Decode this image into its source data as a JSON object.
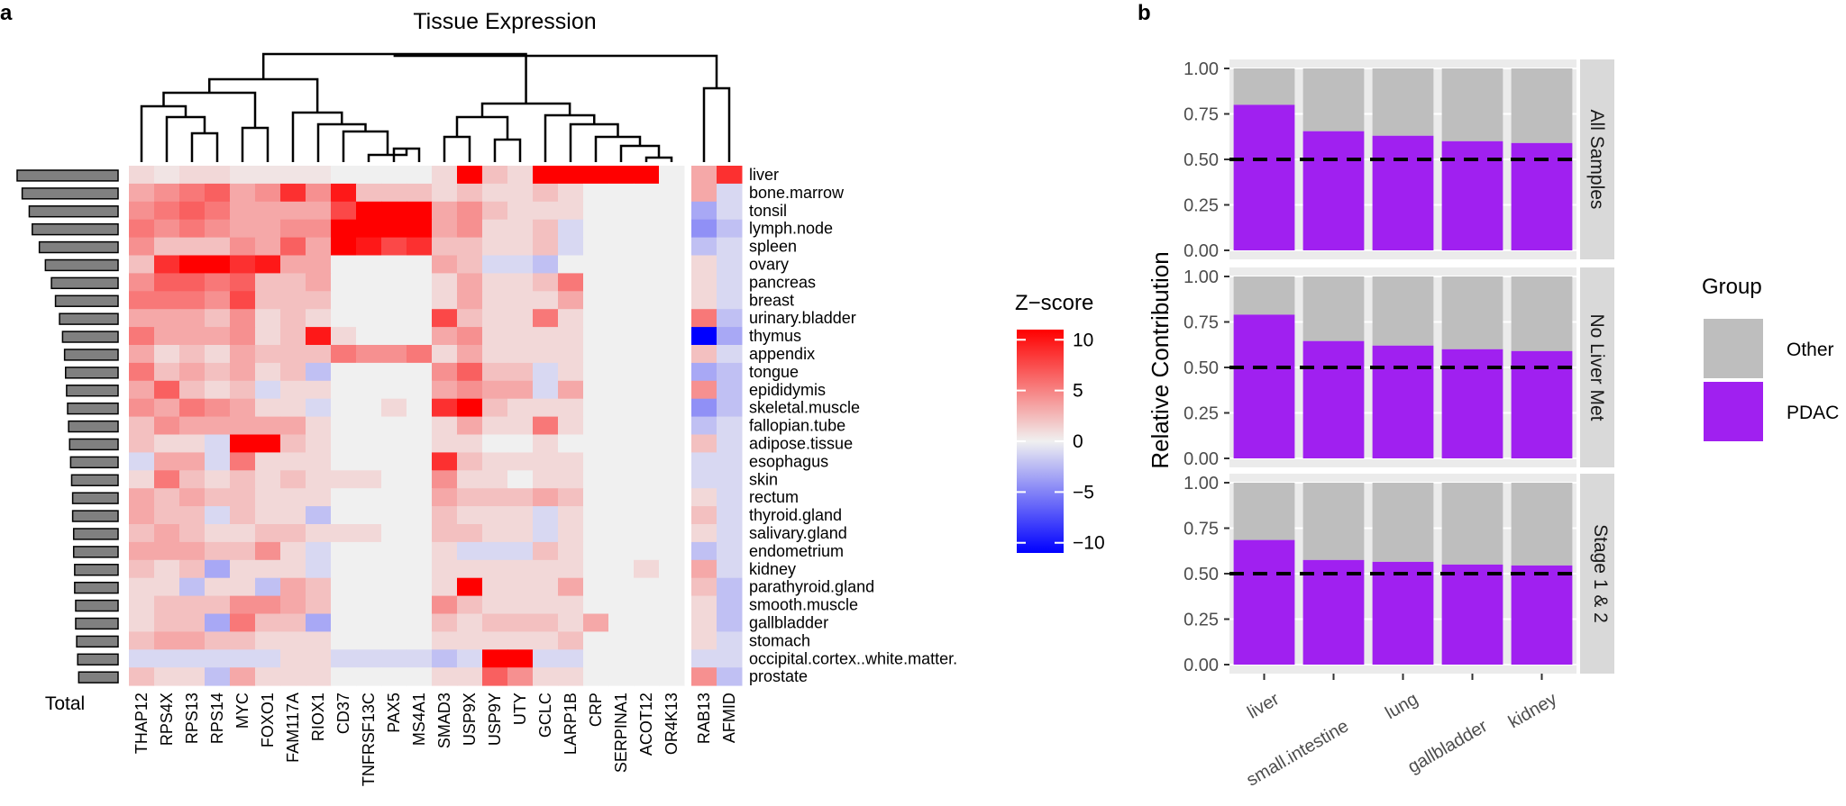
{
  "panels": {
    "a": "a",
    "b": "b"
  },
  "chart_data": [
    {
      "type": "heatmap",
      "title": "Tissue Expression",
      "rows": [
        "liver",
        "bone.marrow",
        "tonsil",
        "lymph.node",
        "spleen",
        "ovary",
        "pancreas",
        "breast",
        "urinary.bladder",
        "thymus",
        "appendix",
        "tongue",
        "epididymis",
        "skeletal.muscle",
        "fallopian.tube",
        "adipose.tissue",
        "esophagus",
        "skin",
        "rectum",
        "thyroid.gland",
        "salivary.gland",
        "endometrium",
        "kidney",
        "parathyroid.gland",
        "smooth.muscle",
        "gallbladder",
        "stomach",
        "occipital.cortex..white.matter.",
        "prostate"
      ],
      "columns": [
        "THAP12",
        "RPS4X",
        "RPS13",
        "RPS14",
        "MYC",
        "FOXO1",
        "FAM117A",
        "RIOX1",
        "CD37",
        "TNFRSF13C",
        "PAX5",
        "MS4A1",
        "SMAD3",
        "USP9X",
        "USP9Y",
        "UTY",
        "GCLC",
        "LARP1B",
        "CRP",
        "SERPINA1",
        "ACOT12",
        "OR4K13",
        "RAB13",
        "AFMID"
      ],
      "total_label": "Total",
      "row_totals": [
        100,
        95,
        88,
        85,
        78,
        72,
        66,
        62,
        58,
        55,
        53,
        52,
        51,
        50,
        49,
        48,
        47,
        46,
        45,
        45,
        44,
        44,
        43,
        43,
        42,
        42,
        41,
        40,
        39
      ],
      "values": [
        [
          1,
          0.5,
          1,
          1,
          0.5,
          0.5,
          0.5,
          0.5,
          0,
          0,
          0,
          0,
          1,
          12,
          2,
          1,
          10,
          10,
          10,
          10,
          10,
          0,
          3,
          8
        ],
        [
          3,
          4,
          5,
          6,
          3,
          4,
          8,
          4,
          9,
          2,
          2,
          2,
          1,
          2,
          1,
          1,
          2,
          1,
          0,
          0,
          0,
          0,
          3,
          -1
        ],
        [
          4,
          5,
          6,
          5,
          3,
          3,
          3,
          3,
          7,
          10,
          10,
          10,
          3,
          4,
          2,
          1,
          1,
          1,
          0,
          0,
          0,
          0,
          -3,
          -1
        ],
        [
          5,
          4,
          5,
          4,
          3,
          3,
          4,
          4,
          10,
          10,
          10,
          10,
          3,
          4,
          1,
          1,
          2,
          -1,
          0,
          0,
          0,
          0,
          -4,
          -2
        ],
        [
          4,
          2,
          2,
          2,
          4,
          3,
          6,
          3,
          10,
          9,
          7,
          8,
          2,
          2,
          1,
          1,
          2,
          -1,
          0,
          0,
          0,
          0,
          -2,
          -1
        ],
        [
          2,
          8,
          10,
          10,
          8,
          9,
          3,
          3,
          0,
          0,
          0,
          0,
          3,
          2,
          -1,
          -1,
          -2,
          0,
          0,
          0,
          0,
          0,
          1,
          -1
        ],
        [
          4,
          6,
          6,
          5,
          6,
          2,
          2,
          3,
          0,
          0,
          0,
          0,
          1,
          3,
          1,
          1,
          2,
          5,
          0,
          0,
          0,
          0,
          1,
          -1
        ],
        [
          5,
          5,
          5,
          4,
          7,
          2,
          2,
          2,
          0,
          0,
          0,
          0,
          1,
          3,
          1,
          1,
          1,
          3,
          0,
          0,
          0,
          0,
          1,
          -1
        ],
        [
          3,
          3,
          3,
          2,
          4,
          1,
          2,
          1,
          0,
          0,
          0,
          0,
          7,
          2,
          1,
          1,
          5,
          1,
          0,
          0,
          0,
          0,
          5,
          -2
        ],
        [
          5,
          3,
          3,
          3,
          4,
          1,
          2,
          9,
          1,
          0,
          0,
          0,
          3,
          4,
          1,
          1,
          1,
          1,
          0,
          0,
          0,
          0,
          -10,
          -3
        ],
        [
          3,
          1,
          2,
          1,
          3,
          2,
          2,
          2,
          5,
          4,
          4,
          5,
          1,
          3,
          1,
          1,
          1,
          1,
          0,
          0,
          0,
          0,
          2,
          -1
        ],
        [
          5,
          2,
          3,
          2,
          3,
          1,
          2,
          -2,
          0,
          0,
          0,
          0,
          4,
          6,
          2,
          2,
          -1,
          1,
          0,
          0,
          0,
          0,
          -3,
          -2
        ],
        [
          3,
          6,
          2,
          1,
          2,
          -1,
          1,
          1,
          0,
          0,
          0,
          0,
          3,
          4,
          3,
          3,
          -1,
          3,
          0,
          0,
          0,
          0,
          4,
          -2
        ],
        [
          4,
          3,
          5,
          4,
          3,
          1,
          1,
          -1,
          0,
          0,
          1,
          0,
          8,
          10,
          2,
          1,
          1,
          1,
          0,
          0,
          0,
          0,
          -4,
          -2
        ],
        [
          2,
          4,
          3,
          3,
          3,
          3,
          3,
          1,
          0,
          0,
          0,
          0,
          1,
          3,
          1,
          1,
          5,
          1,
          0,
          0,
          0,
          0,
          -2,
          -1
        ],
        [
          2,
          1,
          1,
          -1,
          10,
          10,
          2,
          1,
          0,
          0,
          0,
          0,
          1,
          1,
          0,
          0,
          1,
          0,
          0,
          0,
          0,
          0,
          2,
          -1
        ],
        [
          -1,
          3,
          3,
          -1,
          5,
          1,
          1,
          1,
          0,
          0,
          0,
          0,
          8,
          2,
          1,
          1,
          1,
          1,
          0,
          0,
          0,
          0,
          -1,
          -1
        ],
        [
          1,
          5,
          2,
          1,
          2,
          1,
          2,
          1,
          1,
          1,
          0,
          0,
          4,
          1,
          1,
          0,
          1,
          1,
          0,
          0,
          0,
          0,
          -1,
          -1
        ],
        [
          3,
          2,
          3,
          2,
          2,
          1,
          1,
          1,
          0,
          0,
          0,
          0,
          3,
          2,
          2,
          2,
          3,
          2,
          0,
          0,
          0,
          0,
          1,
          -1
        ],
        [
          3,
          2,
          2,
          -1,
          2,
          1,
          1,
          -2,
          0,
          0,
          0,
          0,
          2,
          1,
          1,
          1,
          -1,
          1,
          0,
          0,
          0,
          0,
          2,
          -1
        ],
        [
          2,
          3,
          2,
          1,
          1,
          2,
          2,
          1,
          1,
          1,
          0,
          0,
          2,
          2,
          1,
          1,
          -1,
          1,
          0,
          0,
          0,
          0,
          1,
          -1
        ],
        [
          3,
          3,
          3,
          2,
          2,
          4,
          1,
          -1,
          0,
          0,
          0,
          0,
          1,
          -1,
          -1,
          -1,
          2,
          1,
          0,
          0,
          0,
          0,
          -2,
          -1
        ],
        [
          2,
          1,
          2,
          -3,
          1,
          1,
          1,
          -1,
          0,
          0,
          0,
          0,
          1,
          1,
          1,
          1,
          1,
          1,
          0,
          0,
          1,
          0,
          3,
          -1
        ],
        [
          1,
          1,
          -2,
          1,
          1,
          -2,
          3,
          2,
          0,
          0,
          0,
          0,
          1,
          10,
          1,
          1,
          1,
          3,
          0,
          0,
          0,
          0,
          2,
          -2
        ],
        [
          1,
          2,
          2,
          2,
          4,
          4,
          3,
          2,
          0,
          0,
          0,
          0,
          4,
          2,
          1,
          1,
          1,
          1,
          0,
          0,
          0,
          0,
          1,
          -2
        ],
        [
          1,
          2,
          2,
          -3,
          5,
          2,
          2,
          -3,
          0,
          0,
          0,
          0,
          2,
          1,
          2,
          2,
          2,
          1,
          3,
          0,
          0,
          0,
          1,
          -2
        ],
        [
          2,
          3,
          3,
          2,
          2,
          1,
          1,
          1,
          0,
          0,
          0,
          0,
          1,
          1,
          1,
          1,
          1,
          2,
          0,
          0,
          0,
          0,
          1,
          -1
        ],
        [
          -1,
          -1,
          -1,
          -1,
          -1,
          -1,
          1,
          1,
          -1,
          -1,
          -1,
          -1,
          -2,
          -1,
          10,
          10,
          -1,
          -1,
          0,
          0,
          0,
          0,
          -1,
          -1
        ],
        [
          2,
          1,
          1,
          -2,
          3,
          1,
          1,
          1,
          0,
          0,
          0,
          0,
          1,
          1,
          6,
          4,
          1,
          1,
          0,
          0,
          0,
          0,
          4,
          -2
        ]
      ],
      "legend": {
        "title": "Z−score",
        "ticks": [
          "10",
          "5",
          "0",
          "−5",
          "−10"
        ],
        "tick_values": [
          10,
          5,
          0,
          -5,
          -10
        ],
        "range": [
          -11,
          11
        ],
        "colors": [
          "#0000ff",
          "#f0f0f0",
          "#ff0000"
        ]
      }
    },
    {
      "type": "bar",
      "stacked": true,
      "ylabel": "Relative Contribution",
      "categories": [
        "liver",
        "small.intestine",
        "lung",
        "gallbladder",
        "kidney"
      ],
      "yticks": [
        "0.00",
        "0.25",
        "0.50",
        "0.75",
        "1.00"
      ],
      "ytick_values": [
        0,
        0.25,
        0.5,
        0.75,
        1
      ],
      "ylim": [
        0,
        1
      ],
      "reference_line": 0.5,
      "facets": [
        {
          "label": "All Samples",
          "pdac": [
            0.8,
            0.655,
            0.63,
            0.6,
            0.59
          ]
        },
        {
          "label": "No Liver Met",
          "pdac": [
            0.79,
            0.645,
            0.62,
            0.6,
            0.59
          ]
        },
        {
          "label": "Stage 1 & 2",
          "pdac": [
            0.685,
            0.575,
            0.565,
            0.55,
            0.545
          ]
        }
      ],
      "legend": {
        "title": "Group",
        "entries": [
          {
            "name": "Other",
            "color": "#bebebe"
          },
          {
            "name": "PDAC",
            "color": "#a020f0"
          }
        ]
      }
    }
  ]
}
